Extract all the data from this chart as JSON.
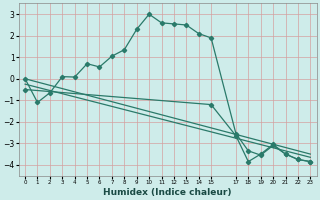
{
  "xlabel": "Humidex (Indice chaleur)",
  "bg_color": "#ceecea",
  "grid_color": "#d4a0a0",
  "line_color": "#2a7a6a",
  "xlim": [
    -0.5,
    23.5
  ],
  "ylim": [
    -4.5,
    3.5
  ],
  "yticks": [
    -4,
    -3,
    -2,
    -1,
    0,
    1,
    2,
    3
  ],
  "xtick_positions": [
    0,
    1,
    2,
    3,
    4,
    5,
    6,
    7,
    8,
    9,
    10,
    11,
    12,
    13,
    14,
    15,
    17,
    18,
    19,
    20,
    21,
    22,
    23
  ],
  "xtick_labels": [
    "0",
    "1",
    "2",
    "3",
    "4",
    "5",
    "6",
    "7",
    "8",
    "9",
    "10",
    "11",
    "12",
    "13",
    "14",
    "15",
    "17",
    "18",
    "19",
    "20",
    "21",
    "22",
    "23"
  ],
  "line1_x": [
    0,
    1,
    2,
    3,
    4,
    5,
    6,
    7,
    8,
    9,
    10,
    11,
    12,
    13,
    14,
    15,
    17,
    18,
    19,
    20,
    21,
    22,
    23
  ],
  "line1_y": [
    0.0,
    -1.1,
    -0.65,
    0.1,
    0.08,
    0.7,
    0.55,
    1.05,
    1.35,
    2.3,
    3.0,
    2.6,
    2.55,
    2.5,
    2.1,
    1.9,
    -2.55,
    -3.35,
    -3.55,
    -3.1,
    -3.5,
    -3.75,
    -3.85
  ],
  "line2_x": [
    0,
    23
  ],
  "line2_y": [
    0.0,
    -3.5
  ],
  "line3_x": [
    0,
    23
  ],
  "line3_y": [
    -0.25,
    -3.65
  ],
  "line4_x": [
    0,
    15,
    17,
    18,
    19,
    20,
    21,
    22,
    23
  ],
  "line4_y": [
    -0.5,
    -1.2,
    -2.65,
    -3.85,
    -3.5,
    -3.05,
    -3.5,
    -3.75,
    -3.85
  ]
}
